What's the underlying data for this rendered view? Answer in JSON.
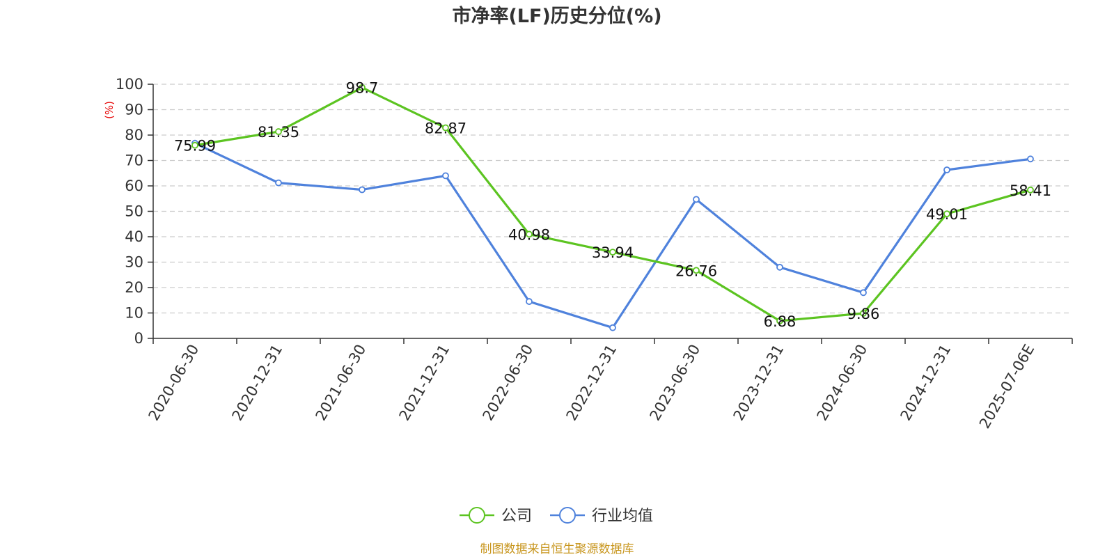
{
  "chart_data": {
    "type": "line",
    "title": "市净率(LF)历史分位(%)",
    "ylabel": "(%)",
    "ylim": [
      0,
      100
    ],
    "yticks": [
      0,
      10,
      20,
      30,
      40,
      50,
      60,
      70,
      80,
      90,
      100
    ],
    "categories": [
      "2020-06-30",
      "2020-12-31",
      "2021-06-30",
      "2021-12-31",
      "2022-06-30",
      "2022-12-31",
      "2023-06-30",
      "2023-12-31",
      "2024-06-30",
      "2024-12-31",
      "2025-07-06E"
    ],
    "series": [
      {
        "name": "公司",
        "color": "#5cc421",
        "values": [
          75.99,
          81.35,
          98.7,
          82.87,
          40.98,
          33.94,
          26.76,
          6.88,
          9.86,
          49.01,
          58.41
        ],
        "value_labels": [
          "75.99",
          "81.35",
          "98.7",
          "82.87",
          "40.98",
          "33.94",
          "26.76",
          "6.88",
          "9.86",
          "49.01",
          "58.41"
        ]
      },
      {
        "name": "行业均值",
        "color": "#4f82dc",
        "values": [
          76.8,
          61.2,
          58.5,
          64.0,
          14.5,
          4.2,
          54.7,
          28.0,
          18.0,
          66.3,
          70.6
        ]
      }
    ],
    "grid": "horizontal-dashed",
    "legend_position": "bottom-center"
  },
  "colors": {
    "unit_label": "#e60000",
    "source": "#c8961e"
  },
  "source_text": "制图数据来自恒生聚源数据库"
}
